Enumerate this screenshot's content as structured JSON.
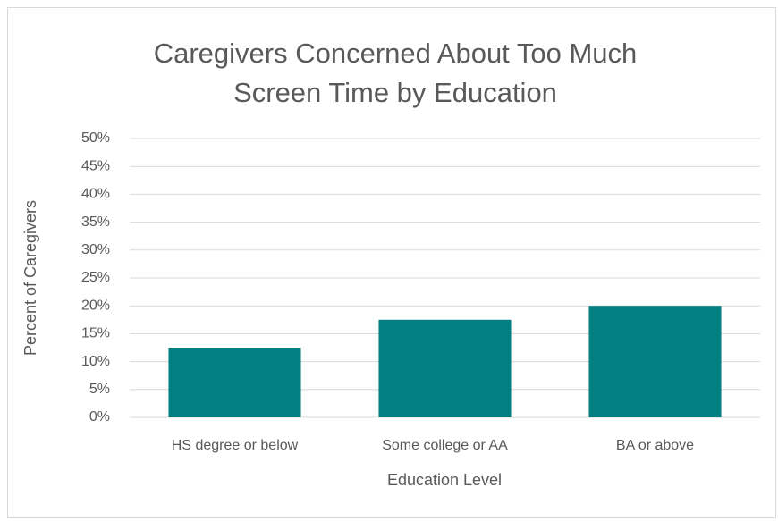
{
  "chart_data": {
    "type": "bar",
    "title": [
      "Caregivers Concerned About Too Much",
      "Screen Time by Education"
    ],
    "categories": [
      "HS degree or below",
      "Some college or AA",
      "BA or above"
    ],
    "values": [
      12.5,
      17.5,
      20
    ],
    "color": "#008080",
    "x_label": "Education Level",
    "y_label": "Percent of Caregivers",
    "ylim": [
      0,
      50
    ],
    "yticks": [
      {
        "value": 0,
        "label": "0%"
      },
      {
        "value": 5,
        "label": "5%"
      },
      {
        "value": 10,
        "label": "10%"
      },
      {
        "value": 15,
        "label": "15%"
      },
      {
        "value": 20,
        "label": "20%"
      },
      {
        "value": 25,
        "label": "25%"
      },
      {
        "value": 30,
        "label": "30%"
      },
      {
        "value": 35,
        "label": "35%"
      },
      {
        "value": 40,
        "label": "40%"
      },
      {
        "value": 45,
        "label": "45%"
      },
      {
        "value": 50,
        "label": "50%"
      }
    ],
    "grid": true
  }
}
